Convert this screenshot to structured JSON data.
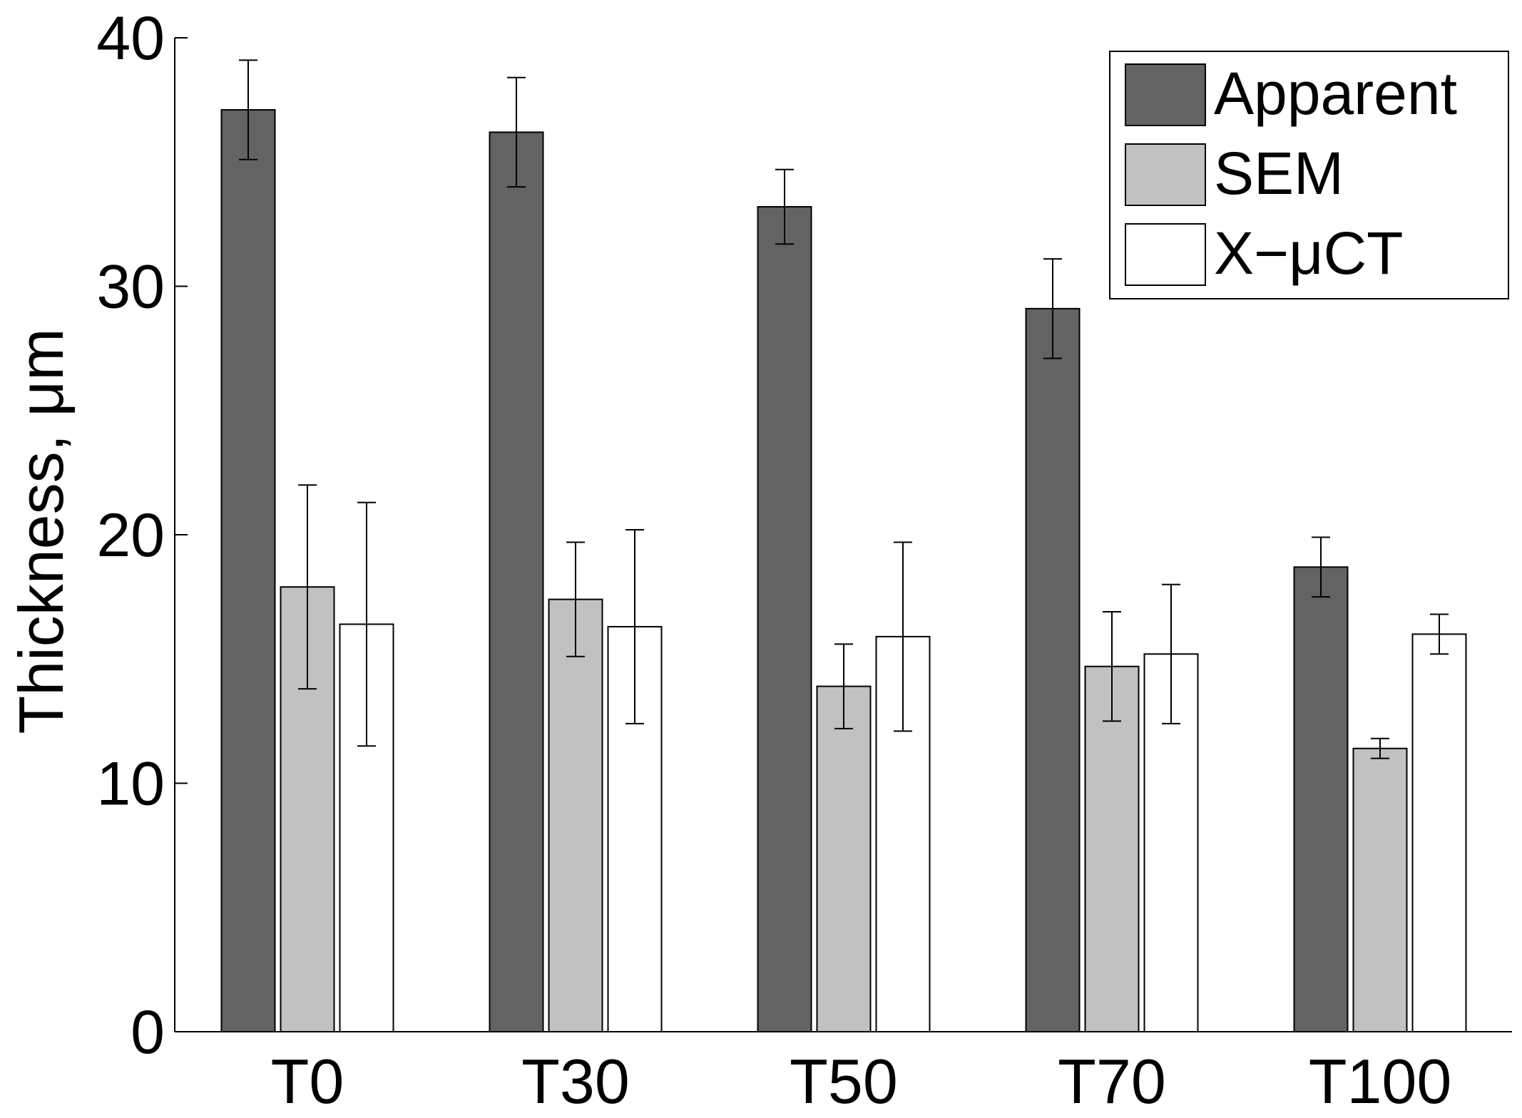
{
  "chart_data": {
    "type": "bar",
    "title": "",
    "xlabel": "",
    "ylabel": "Thickness, μm",
    "ylim": [
      0,
      40
    ],
    "yticks": [
      0,
      10,
      20,
      30,
      40
    ],
    "ytick_labels": [
      "0",
      "10",
      "20",
      "30",
      "40"
    ],
    "grid": false,
    "legend_position": "top-right",
    "categories": [
      "T0",
      "T30",
      "T50",
      "T70",
      "T100"
    ],
    "series": [
      {
        "name": "Apparent",
        "color": "#636363",
        "values": [
          37.1,
          36.2,
          33.2,
          29.1,
          18.7
        ],
        "errors": [
          2.0,
          2.2,
          1.5,
          2.0,
          1.2
        ]
      },
      {
        "name": "SEM",
        "color": "#c1c1c1",
        "values": [
          17.9,
          17.4,
          13.9,
          14.7,
          11.4
        ],
        "errors": [
          4.1,
          2.3,
          1.7,
          2.2,
          0.4
        ]
      },
      {
        "name": "X−μCT",
        "color": "#ffffff",
        "values": [
          16.4,
          16.3,
          15.9,
          15.2,
          16.0
        ],
        "errors": [
          4.9,
          3.9,
          3.8,
          2.8,
          0.8
        ]
      }
    ]
  }
}
